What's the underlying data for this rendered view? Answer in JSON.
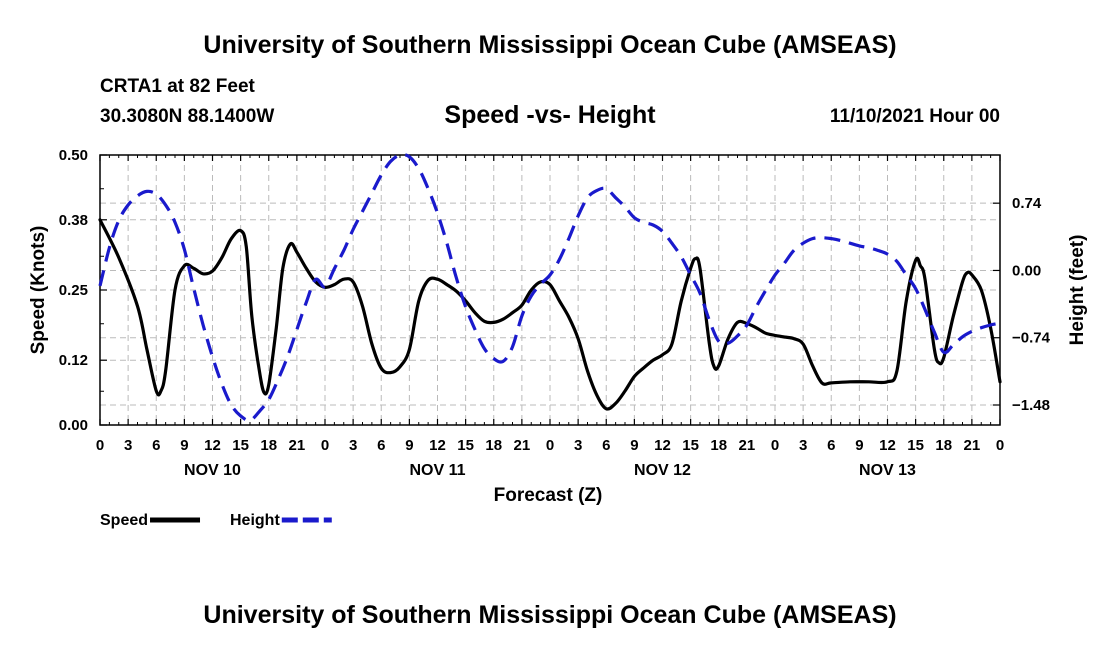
{
  "header": {
    "title": "University of Southern Mississippi Ocean Cube (AMSEAS)",
    "station": "CRTA1 at 82 Feet",
    "coords": "30.3080N  88.1400W",
    "datetime": "11/10/2021 Hour 00"
  },
  "footer": {
    "title": "University of Southern Mississippi Ocean Cube (AMSEAS)"
  },
  "colors": {
    "speed": "#000000",
    "height": "#1a1acc",
    "grid": "#bbbbbb"
  },
  "chart_data": {
    "type": "line",
    "title": "Speed -vs- Height",
    "xlabel": "Forecast (Z)",
    "ylabel": "Speed (Knots)",
    "y2label": "Height (feet)",
    "xlim": [
      0,
      96
    ],
    "ylim": [
      0,
      0.5
    ],
    "y2lim": [
      -1.7,
      1.27
    ],
    "x_ticks": [
      0,
      3,
      6,
      9,
      12,
      15,
      18,
      21,
      24,
      27,
      30,
      33,
      36,
      39,
      42,
      45,
      48,
      51,
      54,
      57,
      60,
      63,
      66,
      69,
      72,
      75,
      78,
      81,
      84,
      87,
      90,
      93,
      96
    ],
    "x_tick_labels": [
      "0",
      "3",
      "6",
      "9",
      "12",
      "15",
      "18",
      "21",
      "0",
      "3",
      "6",
      "9",
      "12",
      "15",
      "18",
      "21",
      "0",
      "3",
      "6",
      "9",
      "12",
      "15",
      "18",
      "21",
      "0",
      "3",
      "6",
      "9",
      "12",
      "15",
      "18",
      "21",
      "0"
    ],
    "day_labels": [
      {
        "x": 12,
        "label": "NOV 10"
      },
      {
        "x": 36,
        "label": "NOV 11"
      },
      {
        "x": 60,
        "label": "NOV 12"
      },
      {
        "x": 84,
        "label": "NOV 13"
      }
    ],
    "y_ticks": [
      0.0,
      0.12,
      0.25,
      0.38,
      0.5
    ],
    "y_tick_labels": [
      "0.00",
      "0.12",
      "0.25",
      "0.38",
      "0.50"
    ],
    "y2_ticks": [
      -1.48,
      -0.74,
      0.0,
      0.74
    ],
    "y2_tick_labels": [
      "−1.48",
      "−0.74",
      "0.00",
      "0.74"
    ],
    "series": [
      {
        "name": "Speed",
        "axis": "left",
        "style": "solid",
        "points": [
          [
            0,
            0.38
          ],
          [
            2,
            0.31
          ],
          [
            4,
            0.22
          ],
          [
            5,
            0.14
          ],
          [
            6,
            0.063
          ],
          [
            6.5,
            0.063
          ],
          [
            7,
            0.1
          ],
          [
            8,
            0.25
          ],
          [
            9,
            0.295
          ],
          [
            10,
            0.29
          ],
          [
            11,
            0.28
          ],
          [
            12,
            0.285
          ],
          [
            13,
            0.31
          ],
          [
            14,
            0.345
          ],
          [
            15,
            0.36
          ],
          [
            15.6,
            0.33
          ],
          [
            16.2,
            0.2
          ],
          [
            17,
            0.1
          ],
          [
            17.5,
            0.06
          ],
          [
            18,
            0.075
          ],
          [
            18.8,
            0.18
          ],
          [
            19.5,
            0.29
          ],
          [
            20.3,
            0.335
          ],
          [
            21,
            0.32
          ],
          [
            22,
            0.29
          ],
          [
            23,
            0.265
          ],
          [
            24,
            0.255
          ],
          [
            25,
            0.26
          ],
          [
            26,
            0.27
          ],
          [
            27,
            0.265
          ],
          [
            28,
            0.22
          ],
          [
            29,
            0.15
          ],
          [
            30,
            0.105
          ],
          [
            31,
            0.097
          ],
          [
            32,
            0.108
          ],
          [
            33,
            0.14
          ],
          [
            34,
            0.23
          ],
          [
            35,
            0.268
          ],
          [
            36,
            0.27
          ],
          [
            37,
            0.26
          ],
          [
            38,
            0.248
          ],
          [
            39,
            0.23
          ],
          [
            40,
            0.208
          ],
          [
            41,
            0.192
          ],
          [
            42,
            0.19
          ],
          [
            43,
            0.196
          ],
          [
            44,
            0.208
          ],
          [
            45,
            0.222
          ],
          [
            46,
            0.25
          ],
          [
            47,
            0.265
          ],
          [
            48,
            0.26
          ],
          [
            49,
            0.23
          ],
          [
            50,
            0.2
          ],
          [
            51,
            0.16
          ],
          [
            52,
            0.1
          ],
          [
            53,
            0.055
          ],
          [
            54,
            0.03
          ],
          [
            55,
            0.04
          ],
          [
            56,
            0.063
          ],
          [
            57,
            0.09
          ],
          [
            58,
            0.106
          ],
          [
            59,
            0.12
          ],
          [
            60,
            0.13
          ],
          [
            61,
            0.15
          ],
          [
            62,
            0.23
          ],
          [
            63,
            0.29
          ],
          [
            63.5,
            0.308
          ],
          [
            64,
            0.29
          ],
          [
            65,
            0.15
          ],
          [
            65.5,
            0.108
          ],
          [
            66,
            0.11
          ],
          [
            67,
            0.16
          ],
          [
            68,
            0.19
          ],
          [
            69,
            0.188
          ],
          [
            70,
            0.18
          ],
          [
            71,
            0.17
          ],
          [
            72,
            0.166
          ],
          [
            73,
            0.163
          ],
          [
            74,
            0.16
          ],
          [
            75,
            0.15
          ],
          [
            76,
            0.11
          ],
          [
            77,
            0.078
          ],
          [
            78,
            0.078
          ],
          [
            80,
            0.08
          ],
          [
            82,
            0.08
          ],
          [
            84,
            0.08
          ],
          [
            85,
            0.1
          ],
          [
            86,
            0.23
          ],
          [
            87,
            0.305
          ],
          [
            87.5,
            0.295
          ],
          [
            88,
            0.27
          ],
          [
            89,
            0.14
          ],
          [
            89.5,
            0.115
          ],
          [
            90,
            0.125
          ],
          [
            91,
            0.2
          ],
          [
            92,
            0.265
          ],
          [
            92.5,
            0.282
          ],
          [
            93,
            0.278
          ],
          [
            94,
            0.25
          ],
          [
            95,
            0.18
          ],
          [
            96,
            0.08
          ]
        ]
      },
      {
        "name": "Height",
        "axis": "right",
        "style": "dashed",
        "points": [
          [
            0,
            -0.17
          ],
          [
            1,
            0.25
          ],
          [
            2,
            0.55
          ],
          [
            3,
            0.72
          ],
          [
            4,
            0.82
          ],
          [
            5,
            0.87
          ],
          [
            6,
            0.84
          ],
          [
            7,
            0.72
          ],
          [
            8,
            0.53
          ],
          [
            9,
            0.23
          ],
          [
            10,
            -0.2
          ],
          [
            11,
            -0.6
          ],
          [
            12,
            -0.95
          ],
          [
            13,
            -1.25
          ],
          [
            14,
            -1.48
          ],
          [
            15,
            -1.6
          ],
          [
            16,
            -1.65
          ],
          [
            17,
            -1.55
          ],
          [
            18,
            -1.42
          ],
          [
            19,
            -1.2
          ],
          [
            20,
            -0.95
          ],
          [
            21,
            -0.65
          ],
          [
            22,
            -0.35
          ],
          [
            23,
            -0.1
          ],
          [
            24,
            -0.18
          ],
          [
            25,
            0.02
          ],
          [
            26,
            0.22
          ],
          [
            27,
            0.45
          ],
          [
            28,
            0.65
          ],
          [
            29,
            0.85
          ],
          [
            30,
            1.05
          ],
          [
            31,
            1.2
          ],
          [
            32,
            1.27
          ],
          [
            33,
            1.25
          ],
          [
            34,
            1.12
          ],
          [
            35,
            0.9
          ],
          [
            36,
            0.63
          ],
          [
            37,
            0.3
          ],
          [
            38,
            -0.08
          ],
          [
            39,
            -0.4
          ],
          [
            40,
            -0.65
          ],
          [
            41,
            -0.86
          ],
          [
            42,
            -0.97
          ],
          [
            43,
            -1.0
          ],
          [
            44,
            -0.84
          ],
          [
            45,
            -0.5
          ],
          [
            46,
            -0.28
          ],
          [
            47,
            -0.15
          ],
          [
            48,
            -0.05
          ],
          [
            49,
            0.12
          ],
          [
            50,
            0.35
          ],
          [
            51,
            0.6
          ],
          [
            52,
            0.8
          ],
          [
            53,
            0.88
          ],
          [
            54,
            0.9
          ],
          [
            55,
            0.8
          ],
          [
            56,
            0.7
          ],
          [
            57,
            0.58
          ],
          [
            58,
            0.53
          ],
          [
            59,
            0.5
          ],
          [
            60,
            0.43
          ],
          [
            61,
            0.3
          ],
          [
            62,
            0.15
          ],
          [
            63,
            -0.05
          ],
          [
            64,
            -0.25
          ],
          [
            65,
            -0.55
          ],
          [
            66,
            -0.78
          ],
          [
            67,
            -0.8
          ],
          [
            68,
            -0.72
          ],
          [
            69,
            -0.6
          ],
          [
            70,
            -0.4
          ],
          [
            71,
            -0.22
          ],
          [
            72,
            -0.05
          ],
          [
            73,
            0.08
          ],
          [
            74,
            0.22
          ],
          [
            75,
            0.3
          ],
          [
            76,
            0.35
          ],
          [
            77,
            0.36
          ],
          [
            78,
            0.35
          ],
          [
            79,
            0.33
          ],
          [
            80,
            0.3
          ],
          [
            81,
            0.27
          ],
          [
            82,
            0.25
          ],
          [
            83,
            0.22
          ],
          [
            84,
            0.18
          ],
          [
            85,
            0.1
          ],
          [
            86,
            -0.05
          ],
          [
            87,
            -0.2
          ],
          [
            88,
            -0.43
          ],
          [
            89,
            -0.68
          ],
          [
            90,
            -0.9
          ],
          [
            91,
            -0.82
          ],
          [
            92,
            -0.73
          ],
          [
            93,
            -0.67
          ],
          [
            94,
            -0.63
          ],
          [
            95,
            -0.6
          ],
          [
            96,
            -0.58
          ]
        ]
      }
    ],
    "legend": [
      {
        "label": "Speed",
        "style": "solid"
      },
      {
        "label": "Height",
        "style": "dashed"
      }
    ]
  }
}
